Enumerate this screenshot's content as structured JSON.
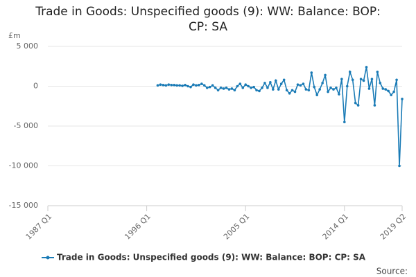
{
  "chart_data": {
    "type": "line",
    "title": "Trade in Goods: Unspecified goods (9): WW: Balance: BOP: CP: SA",
    "y_axis_label": "£m",
    "source": "Source:",
    "categories": [
      "1987 Q1",
      null,
      null,
      null,
      null,
      null,
      null,
      null,
      null,
      null,
      null,
      null,
      null,
      null,
      null,
      null,
      null,
      null,
      null,
      null,
      null,
      null,
      null,
      null,
      null,
      null,
      null,
      null,
      null,
      null,
      null,
      null,
      null,
      null,
      null,
      null,
      "1996 Q1",
      null,
      null,
      null,
      null,
      null,
      null,
      null,
      null,
      null,
      null,
      null,
      null,
      null,
      null,
      null,
      null,
      null,
      null,
      null,
      null,
      null,
      null,
      null,
      null,
      null,
      null,
      null,
      null,
      null,
      null,
      null,
      null,
      null,
      null,
      null,
      "2005 Q1",
      null,
      null,
      null,
      null,
      null,
      null,
      null,
      null,
      null,
      null,
      null,
      null,
      null,
      null,
      null,
      null,
      null,
      null,
      null,
      null,
      null,
      null,
      null,
      null,
      null,
      null,
      null,
      null,
      null,
      null,
      null,
      null,
      null,
      null,
      null,
      "2014 Q1",
      null,
      null,
      null,
      null,
      null,
      null,
      null,
      null,
      null,
      null,
      null,
      null,
      null,
      null,
      null,
      null,
      null,
      null,
      null,
      null,
      "2019 Q2"
    ],
    "series": [
      {
        "name": "Trade in Goods: Unspecified goods (9): WW: Balance: BOP: CP: SA",
        "color": "#1a7bb6",
        "values": [
          null,
          null,
          null,
          null,
          null,
          null,
          null,
          null,
          null,
          null,
          null,
          null,
          null,
          null,
          null,
          null,
          null,
          null,
          null,
          null,
          null,
          null,
          null,
          null,
          null,
          null,
          null,
          null,
          null,
          null,
          null,
          null,
          null,
          null,
          null,
          null,
          null,
          null,
          null,
          null,
          100,
          200,
          150,
          100,
          200,
          150,
          150,
          100,
          100,
          50,
          150,
          0,
          -100,
          200,
          100,
          150,
          300,
          100,
          -200,
          -100,
          100,
          -200,
          -500,
          -200,
          -300,
          -200,
          -400,
          -300,
          -500,
          0,
          300,
          -200,
          200,
          0,
          -200,
          -100,
          -500,
          -600,
          -200,
          400,
          -200,
          500,
          -400,
          700,
          -400,
          300,
          800,
          -500,
          -900,
          -500,
          -700,
          200,
          100,
          300,
          -400,
          -500,
          1700,
          -100,
          -1100,
          -400,
          400,
          1400,
          -700,
          -200,
          -400,
          -200,
          -1000,
          900,
          -4500,
          0,
          1800,
          800,
          -2100,
          -2400,
          900,
          700,
          2400,
          -300,
          900,
          -2400,
          1800,
          400,
          -300,
          -400,
          -600,
          -1100,
          -700,
          800,
          -10000,
          -1600
        ]
      }
    ],
    "ylim": [
      -15000,
      5000
    ],
    "yticks": [
      {
        "value": 5000,
        "label": "5 000"
      },
      0,
      {
        "value": -5000,
        "label": "-5 000"
      },
      {
        "value": -10000,
        "label": "-10 000"
      },
      {
        "value": -15000,
        "label": "-15 000"
      }
    ],
    "grid": true,
    "legend": "bottom"
  }
}
